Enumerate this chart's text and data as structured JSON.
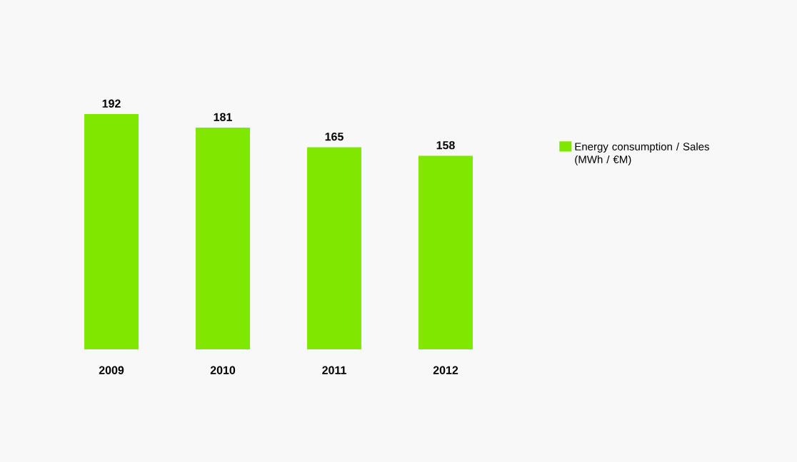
{
  "chart_data": {
    "type": "bar",
    "categories": [
      "2009",
      "2010",
      "2011",
      "2012"
    ],
    "series": [
      {
        "name": "Energy consumption / Sales (MWh / €M)",
        "color": "#80e800",
        "values": [
          192,
          181,
          165,
          158
        ]
      }
    ],
    "data_labels": true,
    "legend": "right"
  }
}
